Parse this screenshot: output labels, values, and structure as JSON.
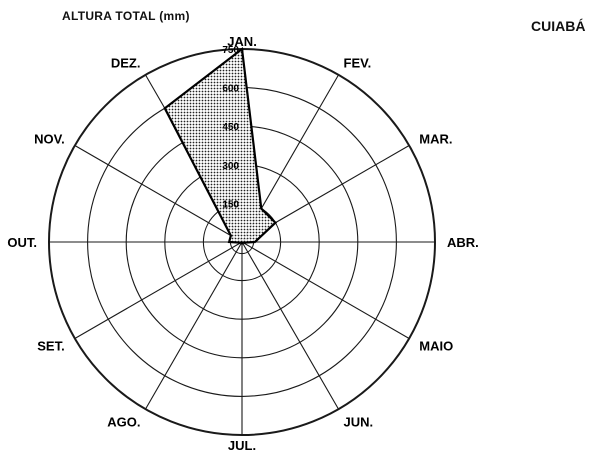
{
  "title": "CUIABÁ",
  "chart_data": {
    "type": "polar",
    "title": "CUIABÁ",
    "ylabel": "ALTURA TOTAL (mm)",
    "categories": [
      "JAN.",
      "FEV.",
      "MAR.",
      "ABR.",
      "MAIO",
      "JUN.",
      "JUL.",
      "AGO.",
      "SET.",
      "OUT.",
      "NOV.",
      "DEZ."
    ],
    "ticks": [
      150,
      300,
      450,
      600,
      750
    ],
    "rlim": [
      0,
      750
    ],
    "grid": true,
    "series": [
      {
        "values": [
          750,
          150,
          150,
          50,
          5,
          5,
          2,
          5,
          5,
          50,
          50,
          600
        ]
      }
    ]
  }
}
